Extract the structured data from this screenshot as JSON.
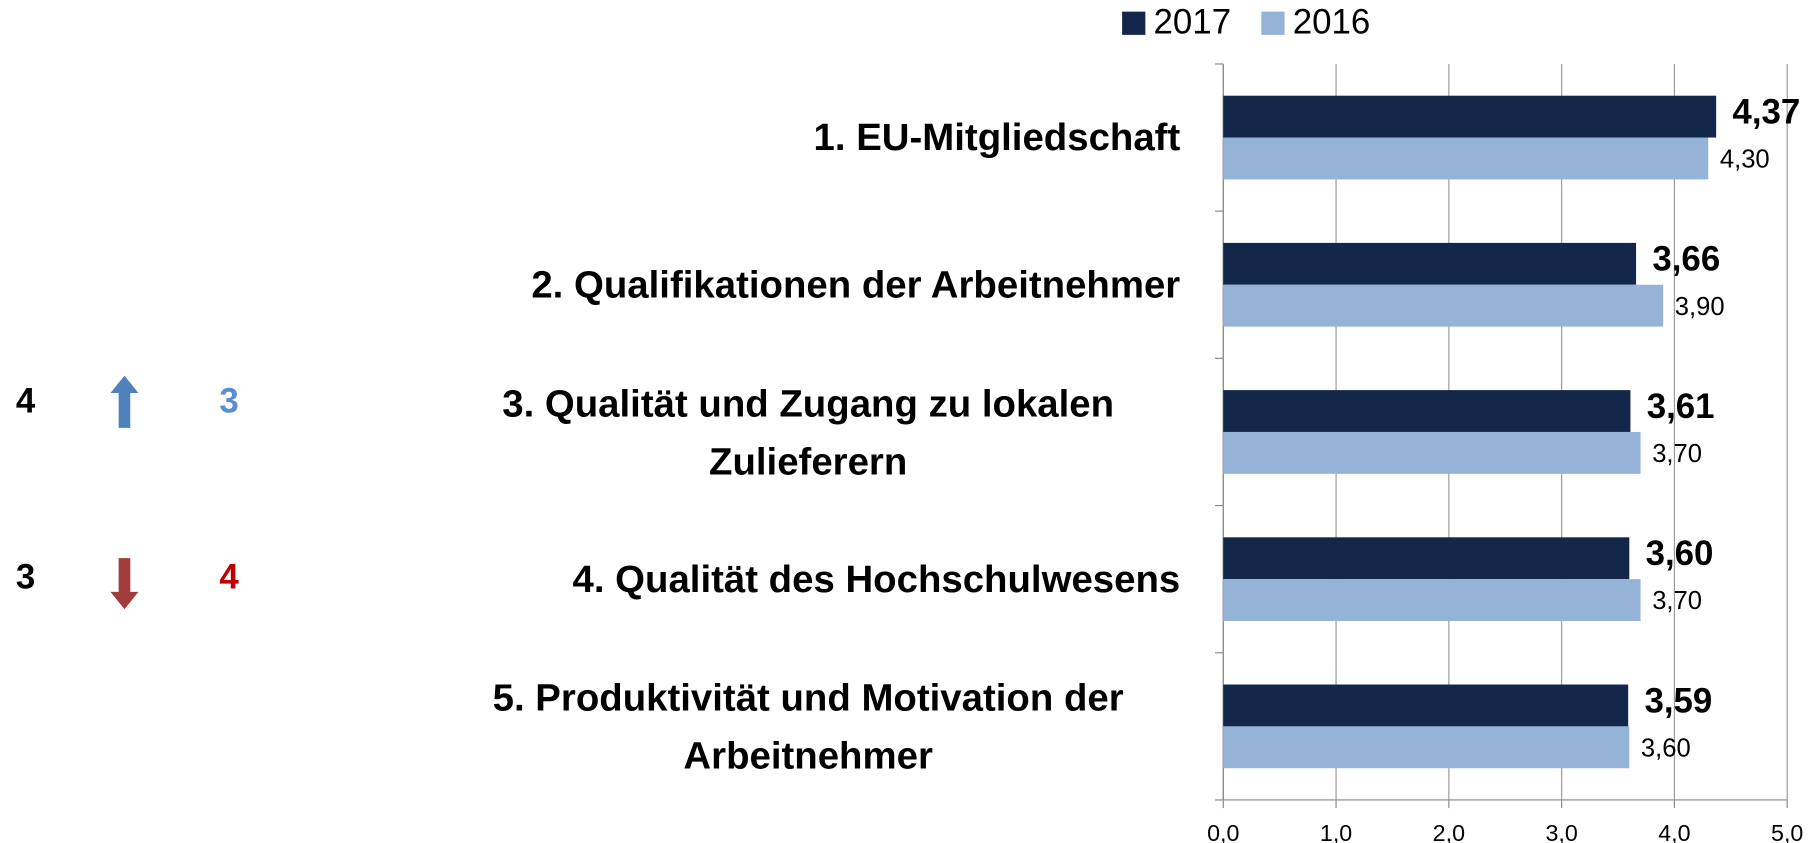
{
  "chart_data": {
    "type": "barh",
    "categories": [
      "1. EU-Mitgliedschaft",
      "2. Qualifikationen der Arbeitnehmer",
      "3. Qualität und Zugang zu lokalen Zulieferern",
      "4. Qualität des Hochschulwesens",
      "5. Produktivität und Motivation der Arbeitnehmer"
    ],
    "series": [
      {
        "name": "2017",
        "color": "#13274a",
        "values": [
          4.37,
          3.66,
          3.61,
          3.6,
          3.59
        ],
        "value_labels": [
          "4,37",
          "3,66",
          "3,61",
          "3,60",
          "3,59"
        ]
      },
      {
        "name": "2016",
        "color": "#95b3d7",
        "values": [
          4.3,
          3.9,
          3.7,
          3.7,
          3.6
        ],
        "value_labels": [
          "4,30",
          "3,90",
          "3,70",
          "3,70",
          "3,60"
        ]
      }
    ],
    "xlim": [
      0,
      5
    ],
    "xticks": [
      {
        "value": 0,
        "label": "0,0"
      },
      {
        "value": 1,
        "label": "1,0"
      },
      {
        "value": 2,
        "label": "2,0"
      },
      {
        "value": 3,
        "label": "3,0"
      },
      {
        "value": 4,
        "label": "4,0"
      },
      {
        "value": 5,
        "label": "5,0"
      }
    ],
    "grid": true,
    "legend": "top",
    "rank_changes": [
      {
        "from": 4,
        "to": 3,
        "direction": "up"
      },
      {
        "from": 3,
        "to": 4,
        "direction": "down"
      }
    ]
  }
}
